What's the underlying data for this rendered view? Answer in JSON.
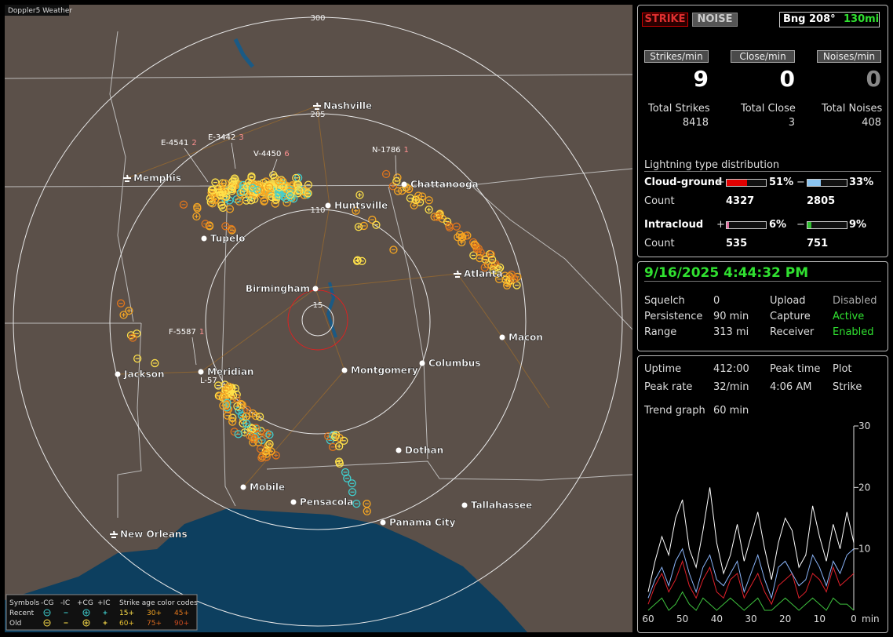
{
  "app_title": "Doppler5 Weather",
  "map": {
    "ring_labels": [
      "300",
      "205",
      "110",
      "15"
    ],
    "cities": [
      "Nashville",
      "Memphis",
      "Chattanooga",
      "Huntsville",
      "Tupelo",
      "Birmingham",
      "Atlanta",
      "Macon",
      "Jackson",
      "Meridian",
      "Montgomery",
      "Columbus",
      "Dothan",
      "Mobile",
      "Pensacola",
      "Tallahassee",
      "Panama City",
      "New Orleans"
    ],
    "storms": [
      {
        "id": "E-4541",
        "count": 2
      },
      {
        "id": "E-3442",
        "count": 3
      },
      {
        "id": "V-4450",
        "count": 6
      },
      {
        "id": "N-1786",
        "count": 1
      },
      {
        "id": "F-5587",
        "count": 1
      },
      {
        "id": "L-57"
      }
    ],
    "legend": {
      "symbols": "Symbols",
      "types": [
        "-CG",
        "-IC",
        "+CG",
        "+IC"
      ],
      "age_title": "Strike age color codes",
      "rows": [
        {
          "label": "Recent",
          "ages": [
            "15+",
            "30+",
            "45+"
          ]
        },
        {
          "label": "Old",
          "ages": [
            "60+",
            "75+",
            "90+"
          ]
        }
      ]
    }
  },
  "controls": {
    "strike": "STRIKE",
    "noise": "NOISE",
    "bearing": "Bng 208°",
    "distance": "130mi"
  },
  "rates": [
    {
      "label": "Strikes/min",
      "value": 9,
      "total_label": "Total Strikes",
      "total": 8418
    },
    {
      "label": "Close/min",
      "value": 0,
      "total_label": "Total Close",
      "total": 3
    },
    {
      "label": "Noises/min",
      "value": 0,
      "total_label": "Total Noises",
      "total": 408
    }
  ],
  "distribution": {
    "title": "Lightning type distribution",
    "count_label": "Count",
    "plus_sign": "+",
    "minus_sign": "−",
    "rows": [
      {
        "name": "Cloud-ground",
        "plus_pct": 51,
        "plus_label": "51%",
        "minus_pct": 33,
        "minus_label": "33%",
        "plus_count": 4327,
        "minus_count": 2805
      },
      {
        "name": "Intracloud",
        "plus_pct": 6,
        "plus_label": "6%",
        "minus_pct": 9,
        "minus_label": "9%",
        "plus_count": 535,
        "minus_count": 751
      }
    ]
  },
  "status": {
    "datetime": "9/16/2025 4:44:32 PM",
    "rows": [
      [
        "Squelch",
        "0",
        "Upload",
        "Disabled"
      ],
      [
        "Persistence",
        "90 min",
        "Capture",
        "Active"
      ],
      [
        "Range",
        "313 mi",
        "Receiver",
        "Enabled"
      ]
    ]
  },
  "stats": {
    "rows": [
      [
        "Uptime",
        "412:00",
        "Peak time",
        "Plot"
      ],
      [
        "Peak rate",
        "32/min",
        "4:06 AM",
        "Strike"
      ]
    ],
    "trend_label": "Trend graph",
    "trend_window": "60 min"
  },
  "chart_data": {
    "type": "line",
    "x_label": "min",
    "x": [
      60,
      58,
      56,
      54,
      52,
      50,
      48,
      46,
      44,
      42,
      40,
      38,
      36,
      34,
      32,
      30,
      28,
      26,
      24,
      22,
      20,
      18,
      16,
      14,
      12,
      10,
      8,
      6,
      4,
      2,
      0
    ],
    "xlim": [
      60,
      0
    ],
    "ylim": [
      0,
      30
    ],
    "xticks": [
      60,
      50,
      40,
      30,
      20,
      10,
      0
    ],
    "yticks": [
      10,
      20,
      30
    ],
    "series": [
      {
        "color": "#ffffff",
        "values": [
          3,
          8,
          12,
          9,
          15,
          18,
          10,
          7,
          13,
          20,
          11,
          6,
          9,
          14,
          8,
          12,
          16,
          10,
          5,
          11,
          15,
          13,
          7,
          9,
          17,
          12,
          8,
          14,
          10,
          16,
          11
        ]
      },
      {
        "color": "#8ab4f8",
        "values": [
          2,
          5,
          7,
          4,
          8,
          10,
          6,
          3,
          7,
          9,
          5,
          4,
          6,
          8,
          3,
          6,
          9,
          5,
          2,
          7,
          8,
          6,
          4,
          5,
          9,
          7,
          4,
          8,
          6,
          9,
          10
        ]
      },
      {
        "color": "#e0202a",
        "values": [
          1,
          4,
          6,
          3,
          5,
          8,
          4,
          2,
          5,
          7,
          3,
          2,
          5,
          6,
          2,
          4,
          6,
          3,
          1,
          4,
          5,
          6,
          2,
          3,
          6,
          5,
          3,
          7,
          4,
          5,
          6
        ]
      },
      {
        "color": "#3ec03e",
        "values": [
          0,
          1,
          2,
          0,
          1,
          3,
          1,
          0,
          2,
          1,
          0,
          1,
          2,
          1,
          0,
          1,
          2,
          0,
          0,
          1,
          2,
          1,
          0,
          1,
          2,
          1,
          0,
          2,
          1,
          1,
          0
        ]
      }
    ]
  }
}
